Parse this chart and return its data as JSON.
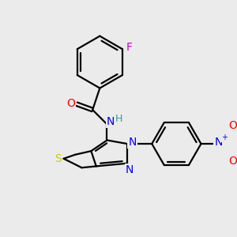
{
  "bg_color": "#ebebeb",
  "atom_colors": {
    "C": "#000000",
    "N": "#0000ee",
    "O": "#ff0000",
    "S": "#cccc00",
    "F": "#cc00cc",
    "H": "#339999"
  },
  "figsize": [
    3.0,
    3.0
  ],
  "dpi": 100
}
